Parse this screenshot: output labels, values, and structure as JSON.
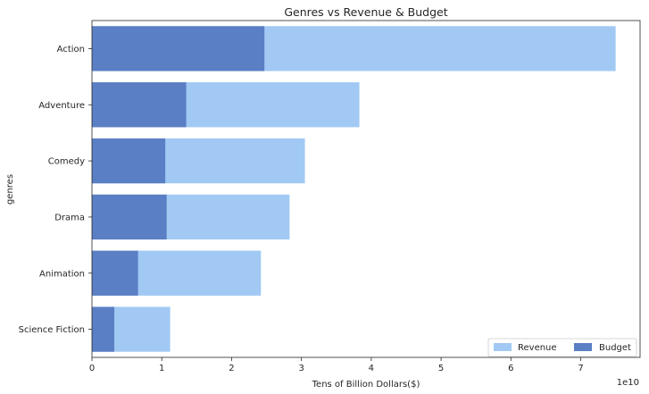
{
  "chart_data": {
    "type": "bar",
    "orientation": "horizontal",
    "title": "Genres vs Revenue & Budget",
    "xlabel": "Tens of Billion Dollars($)",
    "ylabel": "genres",
    "x_offset_label": "1e10",
    "xlim": [
      0,
      7.85
    ],
    "xticks": [
      "0",
      "1",
      "2",
      "3",
      "4",
      "5",
      "6",
      "7"
    ],
    "categories": [
      "Action",
      "Adventure",
      "Comedy",
      "Drama",
      "Animation",
      "Science Fiction"
    ],
    "series": [
      {
        "name": "Revenue",
        "values": [
          7.5,
          3.83,
          3.05,
          2.83,
          2.42,
          1.12
        ],
        "color": "#a1c9f4"
      },
      {
        "name": "Budget",
        "values": [
          2.47,
          1.35,
          1.05,
          1.07,
          0.66,
          0.32
        ],
        "color": "#5b7fc4"
      }
    ],
    "grid": false,
    "legend": {
      "placement": "lower-right",
      "ncol": 2
    }
  }
}
